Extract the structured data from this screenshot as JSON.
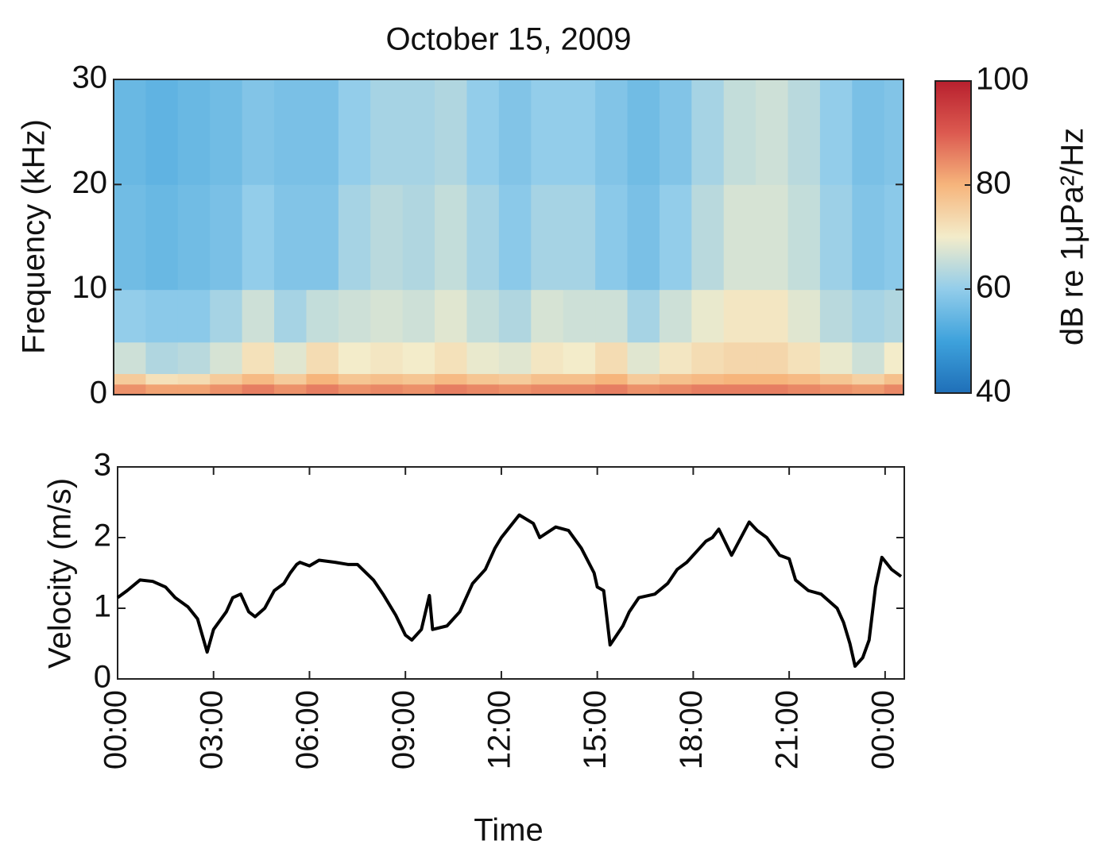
{
  "chart_data": [
    {
      "type": "heatmap",
      "title": "October 15, 2009",
      "ylabel": "Frequency (kHz)",
      "xlim": [
        0,
        24.6
      ],
      "ylim": [
        0,
        30
      ],
      "yticks": [
        0,
        10,
        20,
        30
      ],
      "x_bins": [
        0,
        1,
        2,
        3,
        4,
        5,
        6,
        7,
        8,
        9,
        10,
        11,
        12,
        13,
        14,
        15,
        16,
        17,
        18,
        19,
        20,
        21,
        22,
        23,
        24,
        24.6
      ],
      "y_bins": [
        0,
        1,
        2,
        5,
        10,
        20,
        30
      ],
      "values": [
        [
          84,
          82,
          82,
          84,
          86,
          84,
          86,
          84,
          85,
          84,
          86,
          85,
          84,
          85,
          85,
          86,
          84,
          85,
          86,
          86,
          86,
          85,
          84,
          83,
          85
        ],
        [
          76,
          72,
          73,
          76,
          79,
          76,
          80,
          77,
          78,
          77,
          79,
          77,
          76,
          78,
          78,
          80,
          76,
          78,
          79,
          80,
          80,
          79,
          77,
          75,
          78
        ],
        [
          66,
          63,
          64,
          67,
          72,
          68,
          73,
          70,
          71,
          70,
          72,
          69,
          68,
          71,
          70,
          73,
          68,
          71,
          73,
          74,
          74,
          72,
          69,
          66,
          70
        ],
        [
          60,
          59,
          59,
          62,
          66,
          62,
          65,
          66,
          67,
          66,
          68,
          65,
          63,
          67,
          66,
          66,
          62,
          66,
          69,
          71,
          71,
          68,
          64,
          62,
          63
        ],
        [
          56,
          55,
          56,
          57,
          60,
          58,
          58,
          62,
          64,
          63,
          65,
          62,
          59,
          62,
          62,
          59,
          57,
          60,
          64,
          67,
          67,
          65,
          61,
          58,
          59
        ],
        [
          55,
          54,
          55,
          56,
          58,
          57,
          57,
          60,
          62,
          62,
          63,
          60,
          58,
          60,
          60,
          58,
          56,
          58,
          62,
          65,
          66,
          64,
          60,
          57,
          58
        ]
      ],
      "colormap": [
        "#1f6fb8",
        "#3ea2dc",
        "#93cdea",
        "#f3ecca",
        "#f6b57c",
        "#dc5a50",
        "#b8202e"
      ],
      "colorbar": {
        "label": "dB re 1μPa²/Hz",
        "lim": [
          40,
          100
        ],
        "ticks": [
          40,
          60,
          80,
          100
        ]
      }
    },
    {
      "type": "line",
      "xlabel": "Time",
      "ylabel": "Velocity (m/s)",
      "xlim": [
        0,
        24.6
      ],
      "ylim": [
        0,
        3
      ],
      "yticks": [
        0,
        1,
        2,
        3
      ],
      "xticks": [
        {
          "value": 0,
          "label": "00:00"
        },
        {
          "value": 3,
          "label": "03:00"
        },
        {
          "value": 6,
          "label": "06:00"
        },
        {
          "value": 9,
          "label": "09:00"
        },
        {
          "value": 12,
          "label": "12:00"
        },
        {
          "value": 15,
          "label": "15:00"
        },
        {
          "value": 18,
          "label": "18:00"
        },
        {
          "value": 21,
          "label": "21:00"
        },
        {
          "value": 24,
          "label": "00:00"
        }
      ],
      "color": "#000000",
      "x": [
        0,
        0.3,
        0.7,
        1.1,
        1.5,
        1.8,
        2.2,
        2.5,
        2.8,
        3.0,
        3.4,
        3.6,
        3.85,
        4.1,
        4.3,
        4.6,
        4.9,
        5.2,
        5.4,
        5.6,
        5.7,
        6.0,
        6.3,
        6.8,
        7.2,
        7.5,
        8.0,
        8.3,
        8.7,
        9.0,
        9.2,
        9.5,
        9.75,
        9.85,
        10.3,
        10.7,
        11.1,
        11.5,
        11.8,
        12.0,
        12.56,
        13.0,
        13.2,
        13.7,
        14.1,
        14.5,
        14.9,
        15.0,
        15.2,
        15.4,
        15.8,
        16.0,
        16.3,
        16.8,
        17.2,
        17.5,
        17.8,
        18.1,
        18.4,
        18.6,
        18.8,
        19.2,
        19.75,
        20.0,
        20.3,
        20.7,
        21.0,
        21.2,
        21.6,
        22.0,
        22.5,
        22.7,
        22.9,
        23.06,
        23.3,
        23.5,
        23.7,
        23.9,
        24.2,
        24.5
      ],
      "values": [
        1.15,
        1.25,
        1.4,
        1.38,
        1.3,
        1.15,
        1.02,
        0.85,
        0.38,
        0.7,
        0.95,
        1.15,
        1.2,
        0.95,
        0.88,
        1.0,
        1.25,
        1.35,
        1.5,
        1.62,
        1.65,
        1.6,
        1.68,
        1.65,
        1.62,
        1.62,
        1.4,
        1.2,
        0.9,
        0.62,
        0.55,
        0.7,
        1.18,
        0.7,
        0.75,
        0.95,
        1.35,
        1.55,
        1.85,
        2.0,
        2.32,
        2.2,
        2.0,
        2.15,
        2.1,
        1.85,
        1.5,
        1.3,
        1.25,
        0.48,
        0.75,
        0.95,
        1.15,
        1.2,
        1.35,
        1.55,
        1.65,
        1.8,
        1.95,
        2.0,
        2.12,
        1.75,
        2.22,
        2.1,
        2.0,
        1.75,
        1.7,
        1.4,
        1.25,
        1.2,
        1.0,
        0.8,
        0.5,
        0.18,
        0.3,
        0.55,
        1.3,
        1.72,
        1.55,
        1.45
      ]
    }
  ]
}
